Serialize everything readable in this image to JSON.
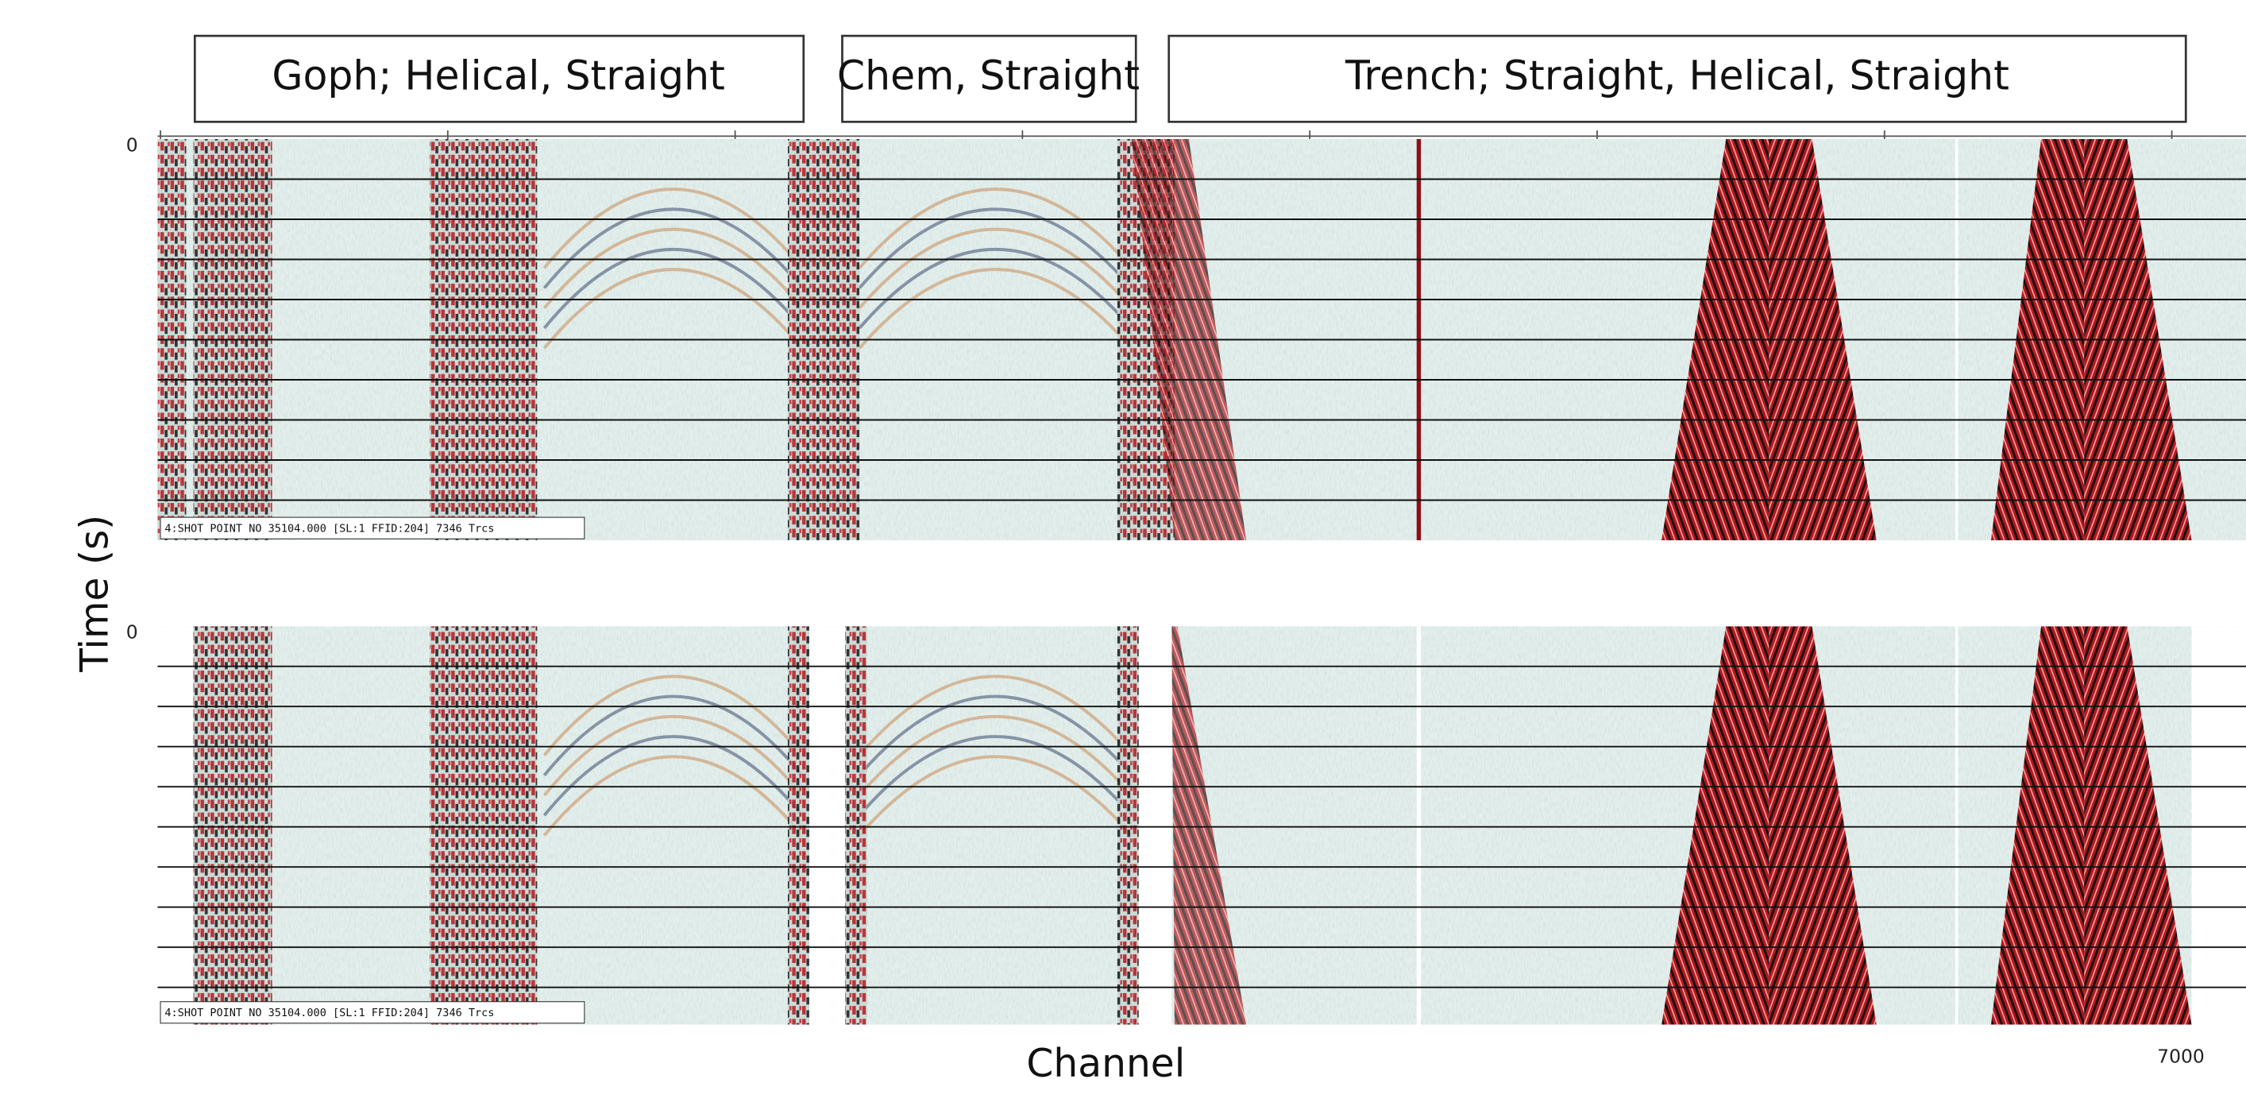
{
  "header_boxes": [
    "Goph; Helical, Straight",
    "Chem, Straight",
    "Trench; Straight, Helical, Straight"
  ],
  "panels": [
    {
      "y_tick": "0",
      "trace_header": "4:SHOT POINT NO 35104.000 [SL:1 FFID:204] 7346 Trcs"
    },
    {
      "y_tick": "0",
      "trace_header": "4:SHOT POINT NO 35104.000 [SL:1 FFID:204] 7346 Trcs"
    }
  ],
  "y_axis_label": "Time (s)",
  "x_axis_label": "Channel",
  "x_tick_right": "7000"
}
